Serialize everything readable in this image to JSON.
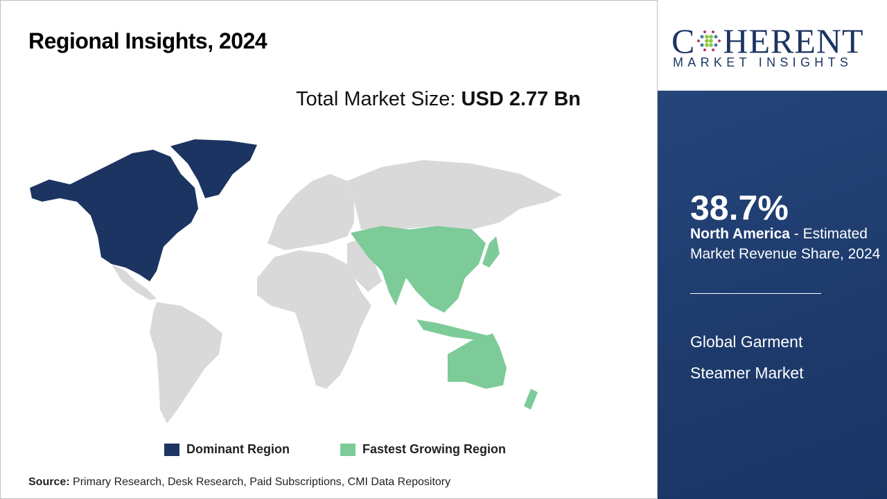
{
  "header": {
    "title": "Regional Insights, 2024"
  },
  "market_size": {
    "label": "Total Market Size:",
    "value": "USD 2.77 Bn"
  },
  "legend": [
    {
      "label": "Dominant Region",
      "color": "#1b3461"
    },
    {
      "label": "Fastest Growing Region",
      "color": "#7dcb98"
    }
  ],
  "map": {
    "dominant_region": "North America",
    "fastest_growing_region": "Asia Pacific",
    "other_color": "#d9d9d9"
  },
  "source": {
    "label": "Source:",
    "text": "Primary Research, Desk Research, Paid Subscriptions, CMI Data Repository"
  },
  "logo": {
    "main": "COHERENT",
    "sub": "MARKET INSIGHTS"
  },
  "panel": {
    "percent": "38.7%",
    "region": "North America",
    "description": "- Estimated Market Revenue Share, 2024",
    "market_name_line1": "Global Garment",
    "market_name_line2": "Steamer Market"
  }
}
